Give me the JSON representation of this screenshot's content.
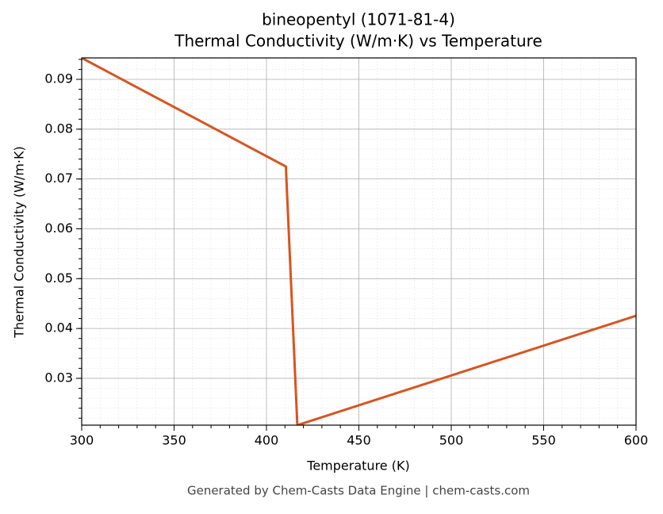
{
  "chart_data": {
    "type": "line",
    "title": "bineopentyl (1071-81-4)",
    "subtitle": "Thermal Conductivity (W/m·K) vs Temperature",
    "x_label": "Temperature (K)",
    "y_label": "Thermal Conductivity (W/m·K)",
    "x": [
      300,
      410.5,
      416.7,
      600
    ],
    "series": [
      {
        "name": "Thermal Conductivity",
        "color": "#d9541e",
        "values": [
          0.0943,
          0.0725,
          0.0206,
          0.04255
        ]
      }
    ],
    "xlim": [
      300,
      600
    ],
    "xticks": [
      300,
      350,
      400,
      450,
      500,
      550,
      600
    ],
    "ylim": [
      0.0206,
      0.0943
    ],
    "yticks": [
      0.03,
      0.04,
      0.05,
      0.06,
      0.07,
      0.08,
      0.09
    ],
    "grid": true,
    "minor_grid": true,
    "legend": false
  },
  "footer": "Generated by Chem-Casts Data Engine | chem-casts.com"
}
